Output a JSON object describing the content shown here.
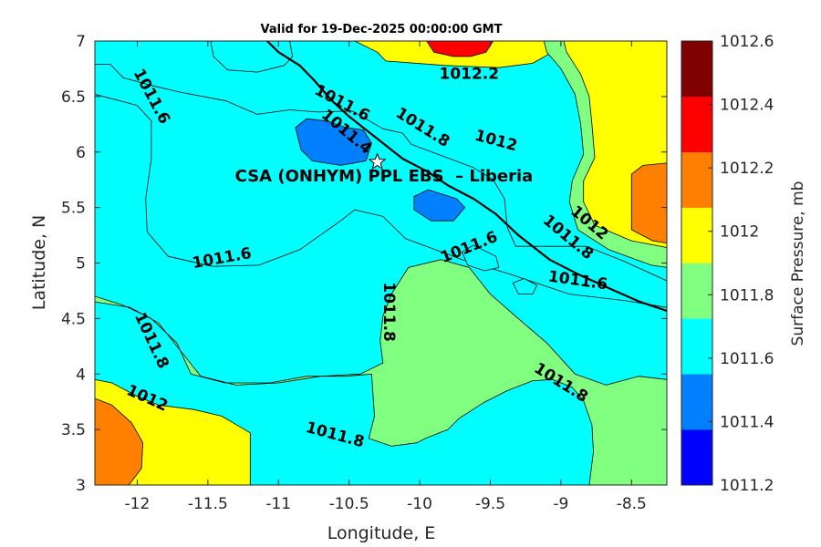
{
  "chart_data": {
    "type": "contour",
    "title": "Valid for 19-Dec-2025 00:00:00 GMT",
    "xlabel": "Longitude, E",
    "ylabel": "Latitude, N",
    "xlim": [
      -12.3,
      -8.25
    ],
    "ylim": [
      3,
      7
    ],
    "x_ticks": [
      -12,
      -11.5,
      -11,
      -10.5,
      -10,
      -9.5,
      -9,
      -8.5
    ],
    "x_tick_labels": [
      "-12",
      "-11.5",
      "-11",
      "-10.5",
      "-10",
      "-9.5",
      "-9",
      "-8.5"
    ],
    "y_ticks": [
      3,
      3.5,
      4,
      4.5,
      5,
      5.5,
      6,
      6.5,
      7
    ],
    "y_tick_labels": [
      "3",
      "3.5",
      "4",
      "4.5",
      "5",
      "5.5",
      "6",
      "6.5",
      "7"
    ],
    "colorbar": {
      "label": "Surface Pressure, mb",
      "levels": [
        1011.2,
        1011.4,
        1011.6,
        1011.8,
        1012,
        1012.2,
        1012.4,
        1012.6
      ],
      "tick_labels": [
        "1011.2",
        "1011.4",
        "1011.6",
        "1011.8",
        "1012",
        "1012.2",
        "1012.4",
        "1012.6"
      ],
      "colors": [
        "#0000ff",
        "#0080ff",
        "#00ffff",
        "#80ff80",
        "#ffff00",
        "#ff8000",
        "#ff0000",
        "#800000"
      ]
    },
    "regions": [
      {
        "band": 4,
        "points": [
          [
            -11.52,
            7
          ],
          [
            -10.46,
            7
          ],
          [
            -10.3,
            6.9
          ],
          [
            -10.24,
            6.82
          ],
          [
            -9.82,
            6.78
          ],
          [
            -9.44,
            6.76
          ],
          [
            -9.2,
            6.8
          ],
          [
            -9.06,
            6.9
          ],
          [
            -9.01,
            7
          ]
        ]
      },
      {
        "band": 6,
        "points": [
          [
            -9.95,
            7
          ],
          [
            -9.9,
            6.9
          ],
          [
            -9.76,
            6.86
          ],
          [
            -9.64,
            6.86
          ],
          [
            -9.53,
            6.9
          ],
          [
            -9.48,
            7
          ]
        ]
      },
      {
        "band": 2,
        "points": [
          [
            -12.3,
            6.79
          ],
          [
            -12.19,
            6.79
          ],
          [
            -12.1,
            6.67
          ],
          [
            -11.9,
            6.6
          ],
          [
            -11.7,
            6.54
          ],
          [
            -11.37,
            6.46
          ],
          [
            -11.15,
            6.34
          ],
          [
            -10.92,
            6.38
          ],
          [
            -10.72,
            6.36
          ],
          [
            -10.48,
            6.37
          ],
          [
            -10.26,
            6.21
          ],
          [
            -10.12,
            6.17
          ],
          [
            -10.06,
            6.07
          ],
          [
            -9.87,
            5.98
          ],
          [
            -9.62,
            5.86
          ],
          [
            -9.48,
            5.75
          ],
          [
            -9.4,
            5.58
          ],
          [
            -9.38,
            5.32
          ],
          [
            -9.32,
            5.15
          ],
          [
            -8.82,
            5.15
          ],
          [
            -8.56,
            5.02
          ],
          [
            -8.25,
            4.84
          ],
          [
            -8.25,
            4.6
          ],
          [
            -8.54,
            4.66
          ],
          [
            -8.94,
            4.72
          ],
          [
            -9.36,
            4.9
          ],
          [
            -9.7,
            5.03
          ],
          [
            -10.1,
            5.22
          ],
          [
            -10.26,
            5.42
          ],
          [
            -10.46,
            5.48
          ],
          [
            -10.56,
            5.38
          ],
          [
            -10.85,
            5.12
          ],
          [
            -11.14,
            4.98
          ],
          [
            -11.47,
            4.97
          ],
          [
            -11.78,
            5.06
          ],
          [
            -11.93,
            5.28
          ],
          [
            -11.94,
            5.58
          ],
          [
            -11.9,
            5.94
          ],
          [
            -11.9,
            6.28
          ],
          [
            -12.0,
            6.42
          ],
          [
            -12.3,
            6.52
          ]
        ]
      },
      {
        "band": 2,
        "points": [
          [
            -11.48,
            7
          ],
          [
            -10.92,
            7
          ],
          [
            -10.9,
            6.86
          ],
          [
            -10.96,
            6.78
          ],
          [
            -11.15,
            6.72
          ],
          [
            -11.36,
            6.74
          ],
          [
            -11.46,
            6.86
          ]
        ]
      },
      {
        "band": 4,
        "points": [
          [
            -12.3,
            3.95
          ],
          [
            -12.18,
            3.92
          ],
          [
            -12.0,
            3.8
          ],
          [
            -11.85,
            3.72
          ],
          [
            -11.6,
            3.68
          ],
          [
            -11.4,
            3.62
          ],
          [
            -11.2,
            3.47
          ],
          [
            -11.2,
            3.0
          ],
          [
            -12.3,
            3.0
          ]
        ]
      },
      {
        "band": 5,
        "points": [
          [
            -12.3,
            3.78
          ],
          [
            -12.18,
            3.72
          ],
          [
            -12.04,
            3.56
          ],
          [
            -11.96,
            3.38
          ],
          [
            -11.97,
            3.15
          ],
          [
            -12.06,
            3.0
          ],
          [
            -12.3,
            3.0
          ]
        ]
      },
      {
        "band": 3,
        "points": [
          [
            -12.3,
            4.7
          ],
          [
            -12.1,
            4.62
          ],
          [
            -11.9,
            4.5
          ],
          [
            -11.72,
            4.28
          ],
          [
            -11.62,
            4.0
          ],
          [
            -11.38,
            3.92
          ],
          [
            -11.06,
            3.92
          ],
          [
            -10.8,
            3.98
          ],
          [
            -10.52,
            3.98
          ],
          [
            -10.34,
            4.0
          ],
          [
            -10.32,
            3.62
          ],
          [
            -10.36,
            3.42
          ],
          [
            -10.2,
            3.35
          ],
          [
            -10.02,
            3.38
          ],
          [
            -9.96,
            3.42
          ],
          [
            -9.8,
            3.5
          ],
          [
            -9.72,
            3.6
          ],
          [
            -9.55,
            3.74
          ],
          [
            -9.38,
            3.85
          ],
          [
            -9.2,
            3.94
          ],
          [
            -9.06,
            3.95
          ],
          [
            -8.92,
            3.88
          ],
          [
            -8.84,
            3.76
          ],
          [
            -8.78,
            3.54
          ],
          [
            -8.77,
            3.3
          ],
          [
            -8.8,
            3.0
          ],
          [
            -8.25,
            3.0
          ],
          [
            -8.25,
            3.95
          ],
          [
            -8.45,
            3.98
          ],
          [
            -8.68,
            3.9
          ],
          [
            -8.9,
            4.0
          ],
          [
            -9.1,
            4.28
          ],
          [
            -9.32,
            4.52
          ],
          [
            -9.5,
            4.72
          ],
          [
            -9.65,
            4.96
          ],
          [
            -9.85,
            5.03
          ],
          [
            -10.08,
            4.96
          ],
          [
            -10.2,
            4.72
          ],
          [
            -10.26,
            4.52
          ],
          [
            -10.28,
            4.3
          ],
          [
            -10.26,
            4.1
          ],
          [
            -10.42,
            4.0
          ],
          [
            -10.7,
            3.98
          ],
          [
            -11.0,
            3.92
          ],
          [
            -11.3,
            3.9
          ],
          [
            -11.55,
            3.98
          ],
          [
            -11.7,
            4.22
          ],
          [
            -11.85,
            4.46
          ],
          [
            -12.05,
            4.6
          ],
          [
            -12.3,
            4.65
          ]
        ]
      },
      {
        "band": 3,
        "points": [
          [
            -9.12,
            7.0
          ],
          [
            -9.1,
            6.9
          ],
          [
            -9.0,
            6.75
          ],
          [
            -8.9,
            6.52
          ],
          [
            -8.86,
            6.25
          ],
          [
            -8.84,
            5.98
          ],
          [
            -8.92,
            5.74
          ],
          [
            -8.94,
            5.55
          ],
          [
            -8.88,
            5.3
          ],
          [
            -8.66,
            5.12
          ],
          [
            -8.36,
            4.98
          ],
          [
            -8.25,
            4.96
          ],
          [
            -8.25,
            7.0
          ]
        ]
      },
      {
        "band": 4,
        "points": [
          [
            -8.98,
            7.0
          ],
          [
            -8.96,
            6.9
          ],
          [
            -8.86,
            6.7
          ],
          [
            -8.8,
            6.5
          ],
          [
            -8.78,
            6.25
          ],
          [
            -8.76,
            5.95
          ],
          [
            -8.84,
            5.74
          ],
          [
            -8.84,
            5.55
          ],
          [
            -8.76,
            5.34
          ],
          [
            -8.5,
            5.2
          ],
          [
            -8.25,
            5.14
          ],
          [
            -8.25,
            7.0
          ]
        ]
      },
      {
        "band": 5,
        "points": [
          [
            -8.25,
            5.9
          ],
          [
            -8.42,
            5.88
          ],
          [
            -8.5,
            5.8
          ],
          [
            -8.5,
            5.3
          ],
          [
            -8.35,
            5.2
          ],
          [
            -8.25,
            5.18
          ]
        ]
      },
      {
        "band": 1,
        "points": [
          [
            -10.88,
            6.22
          ],
          [
            -10.84,
            6.02
          ],
          [
            -10.76,
            5.92
          ],
          [
            -10.56,
            5.88
          ],
          [
            -10.38,
            5.92
          ],
          [
            -10.34,
            6.08
          ],
          [
            -10.4,
            6.2
          ],
          [
            -10.52,
            6.22
          ],
          [
            -10.66,
            6.28
          ],
          [
            -10.8,
            6.3
          ]
        ]
      },
      {
        "band": 1,
        "points": [
          [
            -10.04,
            5.6
          ],
          [
            -9.94,
            5.66
          ],
          [
            -9.74,
            5.58
          ],
          [
            -9.68,
            5.5
          ],
          [
            -9.76,
            5.38
          ],
          [
            -9.92,
            5.38
          ],
          [
            -10.04,
            5.48
          ]
        ]
      },
      {
        "band": 2,
        "points": [
          [
            -9.7,
            5.1
          ],
          [
            -9.62,
            5.16
          ],
          [
            -9.46,
            5.06
          ],
          [
            -9.44,
            4.96
          ],
          [
            -9.54,
            4.93
          ],
          [
            -9.66,
            4.98
          ]
        ]
      },
      {
        "band": 2,
        "points": [
          [
            -9.34,
            4.82
          ],
          [
            -9.26,
            4.86
          ],
          [
            -9.17,
            4.8
          ],
          [
            -9.2,
            4.72
          ],
          [
            -9.3,
            4.72
          ]
        ]
      }
    ],
    "contour_labels": [
      {
        "text": "1012.2",
        "lon": -9.65,
        "lat": 6.7,
        "angle": 0
      },
      {
        "text": "1011.6",
        "lon": -11.9,
        "lat": 6.5,
        "angle": 62
      },
      {
        "text": "1011.6",
        "lon": -10.55,
        "lat": 6.44,
        "angle": 28
      },
      {
        "text": "1011.4",
        "lon": -10.52,
        "lat": 6.18,
        "angle": 40
      },
      {
        "text": "1011.8",
        "lon": -9.98,
        "lat": 6.22,
        "angle": 32
      },
      {
        "text": "1012",
        "lon": -9.46,
        "lat": 6.1,
        "angle": 15
      },
      {
        "text": "1012",
        "lon": -8.8,
        "lat": 5.36,
        "angle": 40
      },
      {
        "text": "1011.8",
        "lon": -8.95,
        "lat": 5.23,
        "angle": 40
      },
      {
        "text": "1011.6",
        "lon": -9.65,
        "lat": 5.14,
        "angle": -22
      },
      {
        "text": "1011.6",
        "lon": -11.4,
        "lat": 5.04,
        "angle": -10
      },
      {
        "text": "1011.6",
        "lon": -8.88,
        "lat": 4.84,
        "angle": 8
      },
      {
        "text": "1011.8",
        "lon": -10.22,
        "lat": 4.56,
        "angle": 90
      },
      {
        "text": "1011.8",
        "lon": -11.9,
        "lat": 4.3,
        "angle": 65
      },
      {
        "text": "1011.8",
        "lon": -9.0,
        "lat": 3.92,
        "angle": 32
      },
      {
        "text": "1011.8",
        "lon": -10.6,
        "lat": 3.45,
        "angle": 15
      },
      {
        "text": "1012",
        "lon": -11.93,
        "lat": 3.78,
        "angle": 24
      }
    ],
    "coastline": [
      [
        -11.08,
        7.0
      ],
      [
        -11.0,
        6.9
      ],
      [
        -10.85,
        6.78
      ],
      [
        -10.75,
        6.65
      ],
      [
        -10.62,
        6.46
      ],
      [
        -10.5,
        6.32
      ],
      [
        -10.38,
        6.2
      ],
      [
        -10.23,
        6.05
      ],
      [
        -10.12,
        5.94
      ],
      [
        -9.94,
        5.82
      ],
      [
        -9.8,
        5.7
      ],
      [
        -9.62,
        5.58
      ],
      [
        -9.46,
        5.44
      ],
      [
        -9.3,
        5.25
      ],
      [
        -9.08,
        5.03
      ],
      [
        -8.88,
        4.9
      ],
      [
        -8.62,
        4.75
      ],
      [
        -8.44,
        4.65
      ],
      [
        -8.25,
        4.57
      ]
    ],
    "site": {
      "label": "CSA (ONHYM) PPL EBS  – Liberia",
      "lon": -10.3,
      "lat": 5.91,
      "marker": "star"
    }
  }
}
